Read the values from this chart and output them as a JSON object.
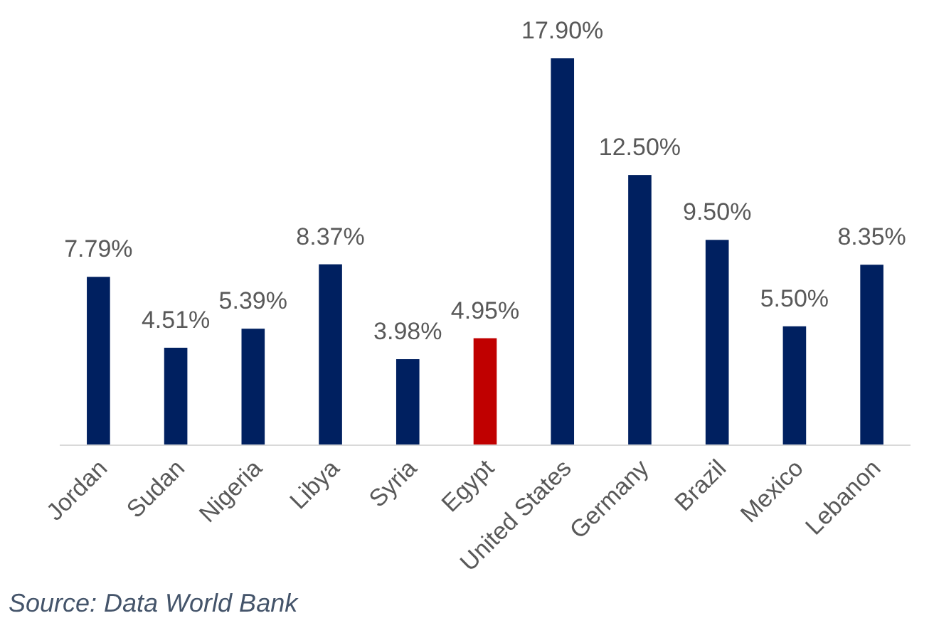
{
  "chart_data": {
    "type": "bar",
    "categories": [
      "Jordan",
      "Sudan",
      "Nigeria",
      "Libya",
      "Syria",
      "Egypt",
      "United States",
      "Germany",
      "Brazil",
      "Mexico",
      "Lebanon"
    ],
    "values": [
      7.79,
      4.51,
      5.39,
      8.37,
      3.98,
      4.95,
      17.9,
      12.5,
      9.5,
      5.5,
      8.35
    ],
    "colors": [
      "#002060",
      "#002060",
      "#002060",
      "#002060",
      "#002060",
      "#c00000",
      "#002060",
      "#002060",
      "#002060",
      "#002060",
      "#002060"
    ],
    "value_labels": [
      "7.79%",
      "4.51%",
      "5.39%",
      "8.37%",
      "3.98%",
      "4.95%",
      "17.90%",
      "12.50%",
      "9.50%",
      "5.50%",
      "8.35%"
    ],
    "annotations": [
      "Source: Data World Bank"
    ]
  }
}
